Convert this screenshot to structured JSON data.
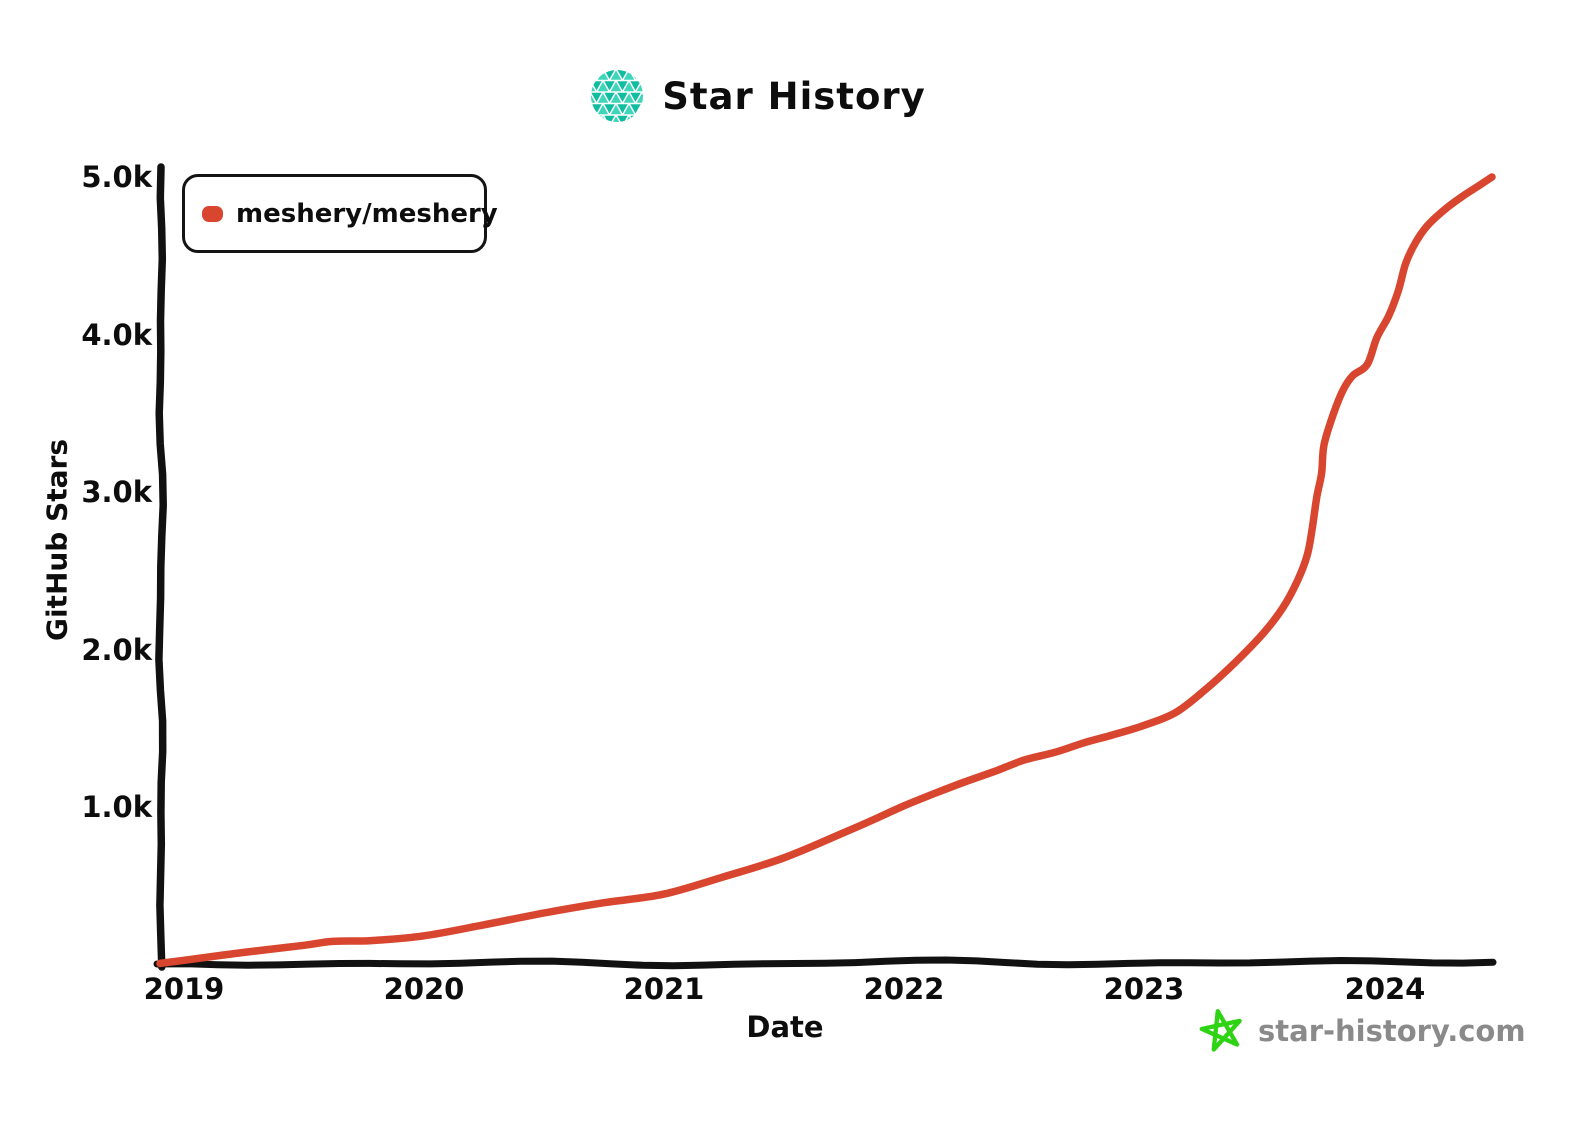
{
  "chart_data": {
    "type": "line",
    "title": "Star History",
    "xlabel": "Date",
    "ylabel": "GitHub Stars",
    "x_tick_labels": [
      "2019",
      "2020",
      "2021",
      "2022",
      "2023",
      "2024"
    ],
    "y_tick_labels": [
      "5.0k",
      "4.0k",
      "3.0k",
      "2.0k",
      "1.0k"
    ],
    "ylim": [
      0,
      5000
    ],
    "xlim_decimal_years": [
      2018.9,
      2024.55
    ],
    "grid": false,
    "legend_position": "top-left",
    "axis_color": "#111111",
    "series": [
      {
        "name": "meshery/meshery",
        "color": "#d8462f",
        "points_decimal_year_stars": [
          [
            2018.9,
            10
          ],
          [
            2019.0,
            30
          ],
          [
            2019.25,
            80
          ],
          [
            2019.5,
            125
          ],
          [
            2019.62,
            150
          ],
          [
            2019.78,
            155
          ],
          [
            2020.0,
            185
          ],
          [
            2020.25,
            255
          ],
          [
            2020.5,
            330
          ],
          [
            2020.75,
            395
          ],
          [
            2021.0,
            450
          ],
          [
            2021.25,
            560
          ],
          [
            2021.5,
            680
          ],
          [
            2021.75,
            840
          ],
          [
            2021.87,
            920
          ],
          [
            2022.0,
            1010
          ],
          [
            2022.13,
            1090
          ],
          [
            2022.25,
            1160
          ],
          [
            2022.38,
            1230
          ],
          [
            2022.5,
            1300
          ],
          [
            2022.63,
            1350
          ],
          [
            2022.75,
            1410
          ],
          [
            2022.87,
            1460
          ],
          [
            2023.0,
            1520
          ],
          [
            2023.13,
            1600
          ],
          [
            2023.25,
            1740
          ],
          [
            2023.38,
            1920
          ],
          [
            2023.5,
            2110
          ],
          [
            2023.58,
            2270
          ],
          [
            2023.64,
            2440
          ],
          [
            2023.68,
            2600
          ],
          [
            2023.7,
            2760
          ],
          [
            2023.72,
            2970
          ],
          [
            2023.74,
            3120
          ],
          [
            2023.75,
            3300
          ],
          [
            2023.79,
            3500
          ],
          [
            2023.83,
            3650
          ],
          [
            2023.87,
            3740
          ],
          [
            2023.93,
            3810
          ],
          [
            2023.97,
            3980
          ],
          [
            2024.02,
            4120
          ],
          [
            2024.06,
            4280
          ],
          [
            2024.09,
            4450
          ],
          [
            2024.13,
            4580
          ],
          [
            2024.18,
            4690
          ],
          [
            2024.25,
            4790
          ],
          [
            2024.32,
            4870
          ],
          [
            2024.39,
            4940
          ],
          [
            2024.45,
            5000
          ]
        ]
      }
    ]
  },
  "logo": {
    "name": "star-history-logo",
    "color_dark": "#10bda0",
    "color_light": "#3ed6bb"
  },
  "watermark": {
    "text": "star-history.com",
    "text_color": "#8a8a8a",
    "icon_color": "#2ed313"
  }
}
